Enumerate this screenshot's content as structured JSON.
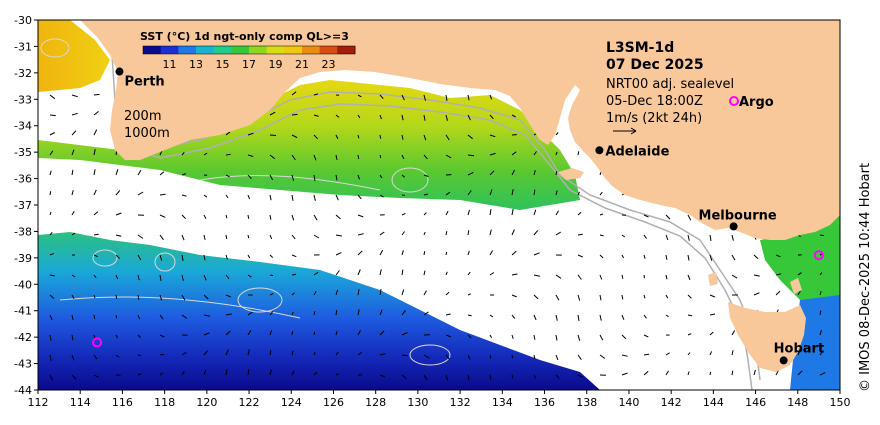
{
  "colorbar": {
    "title": "SST (°C) 1d ngt-only comp QL>=3",
    "ticks": [
      11,
      13,
      15,
      17,
      19,
      21,
      23
    ],
    "range": [
      9,
      25
    ],
    "colors": [
      "#0a0a8c",
      "#1a2fd6",
      "#1e78e6",
      "#17b4d2",
      "#1ecc8c",
      "#36c839",
      "#8fd61f",
      "#d8dc14",
      "#f0c80f",
      "#ea8c12",
      "#d84c14",
      "#a01e0a"
    ]
  },
  "info": {
    "title": "L3SM-1d",
    "date": "07 Dec 2025",
    "product": "NRT00 adj. sealevel",
    "time": "05-Dec 18:00Z",
    "argo_label": "Argo",
    "scale": "1m/s (2kt 24h)"
  },
  "depth_labels": {
    "shallow": "200m",
    "deep": "1000m"
  },
  "cities": [
    {
      "name": "Perth",
      "lon": 115.86,
      "lat": -31.95
    },
    {
      "name": "Adelaide",
      "lon": 138.6,
      "lat": -34.93
    },
    {
      "name": "Melbourne",
      "lon": 144.96,
      "lat": -37.81
    },
    {
      "name": "Hobart",
      "lon": 147.33,
      "lat": -42.88
    }
  ],
  "argo_floats": [
    {
      "lon": 114.8,
      "lat": -42.2
    },
    {
      "lon": 149.0,
      "lat": -38.9
    }
  ],
  "axes": {
    "lon_range": [
      112,
      150
    ],
    "lat_range": [
      -44,
      -30
    ],
    "lon_ticks": [
      112,
      114,
      116,
      118,
      120,
      122,
      124,
      126,
      128,
      130,
      132,
      134,
      136,
      138,
      140,
      142,
      144,
      146,
      148,
      150
    ],
    "lat_ticks": [
      -30,
      -31,
      -32,
      -33,
      -34,
      -35,
      -36,
      -37,
      -38,
      -39,
      -40,
      -41,
      -42,
      -43,
      -44
    ]
  },
  "colors": {
    "land": "#f8c89a",
    "no_data": "#ffffff",
    "contour": "#d0d0d0",
    "argo": "#ff00ff"
  },
  "credit": "© IMOS 08-Dec-2025 10:44 Hobart"
}
